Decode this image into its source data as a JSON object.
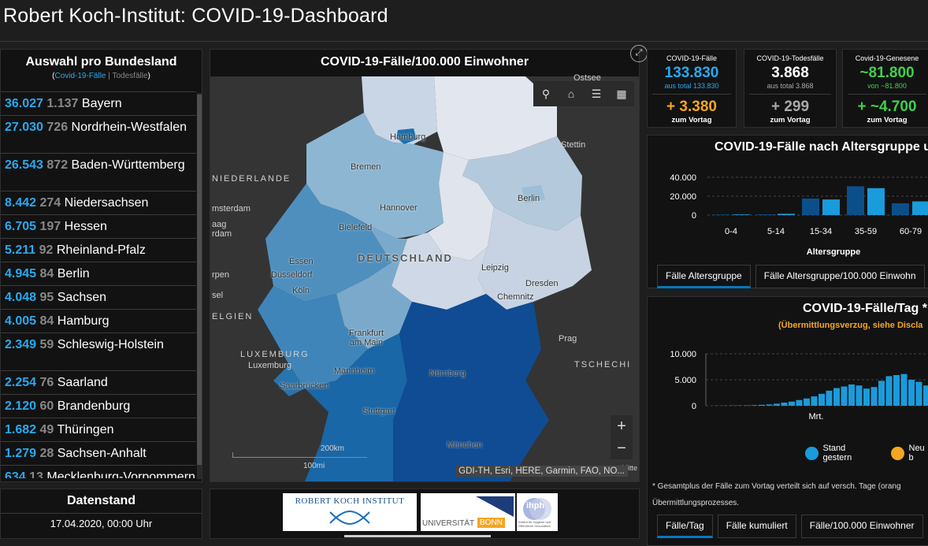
{
  "header": {
    "title": "Robert Koch-Institut: COVID-19-Dashboard"
  },
  "states_panel": {
    "title": "Auswahl pro Bundesland",
    "toggle_cases": "Covid-19-Fälle",
    "toggle_sep": "|",
    "toggle_deaths": "Todesfälle",
    "rows": [
      {
        "cases": "36.027",
        "deaths": "1.137",
        "name": "Bayern"
      },
      {
        "cases": "27.030",
        "deaths": "726",
        "name": "Nordrhein-Westfalen"
      },
      {
        "cases": "26.543",
        "deaths": "872",
        "name": "Baden-Württemberg"
      },
      {
        "cases": "8.442",
        "deaths": "274",
        "name": "Niedersachsen"
      },
      {
        "cases": "6.705",
        "deaths": "197",
        "name": "Hessen"
      },
      {
        "cases": "5.211",
        "deaths": "92",
        "name": "Rheinland-Pfalz"
      },
      {
        "cases": "4.945",
        "deaths": "84",
        "name": "Berlin"
      },
      {
        "cases": "4.048",
        "deaths": "95",
        "name": "Sachsen"
      },
      {
        "cases": "4.005",
        "deaths": "84",
        "name": "Hamburg"
      },
      {
        "cases": "2.349",
        "deaths": "59",
        "name": "Schleswig-Holstein"
      },
      {
        "cases": "2.254",
        "deaths": "76",
        "name": "Saarland"
      },
      {
        "cases": "2.120",
        "deaths": "60",
        "name": "Brandenburg"
      },
      {
        "cases": "1.682",
        "deaths": "49",
        "name": "Thüringen"
      },
      {
        "cases": "1.279",
        "deaths": "28",
        "name": "Sachsen-Anhalt"
      },
      {
        "cases": "634",
        "deaths": "13",
        "name": "Mecklenburg-Vorpommern"
      }
    ]
  },
  "map": {
    "title": "COVID-19-Fälle/100.000 Einwohner",
    "country_label": "DEUTSCHLAND",
    "cities": [
      "Hamburg",
      "Bremen",
      "Hannover",
      "Berlin",
      "Bielefeld",
      "Essen",
      "Düsseldorf",
      "Köln",
      "Leipzig",
      "Dresden",
      "Chemnitz",
      "Frankfurt am Main",
      "Nürnberg",
      "Mannheim",
      "Saarbrücken",
      "Stuttgart",
      "München",
      "Stettin",
      "Prag",
      "Luxemburg",
      "msterdam",
      "aag",
      "rdam",
      "rpen",
      "sel",
      "Ostsee"
    ],
    "regions_dark": [
      "NIEDERLANDE",
      "ELGIEN",
      "LUXEMBURG",
      "TSCHECHI"
    ],
    "scale_label": "200km",
    "scale_label2": "100mi",
    "attribution": "GDI-TH, Esri, HERE, Garmin, FAO, NO...",
    "attribution2": "Mitte",
    "zoom_in": "+",
    "zoom_out": "−",
    "toolbar_icons": [
      "search-icon",
      "home-icon",
      "list-icon",
      "qr-grid-icon"
    ]
  },
  "cards": [
    {
      "label": "COVID-19-Fälle",
      "value": "133.830",
      "sub": "aus total 133.830",
      "delta": "+ 3.380",
      "vortag": "zum Vortag",
      "value_color": "#29a9f0",
      "sub_color": "#29a9f0",
      "delta_color": "#f5a623"
    },
    {
      "label": "COVID-19-Todesfälle",
      "value": "3.868",
      "sub": "aus total 3.868",
      "delta": "+ 299",
      "vortag": "zum Vortag",
      "value_color": "#ffffff",
      "sub_color": "#aaaaaa",
      "delta_color": "#aaaaaa"
    },
    {
      "label": "Covid-19-Genesene",
      "value": "~81.800",
      "sub": "von ~81.800",
      "delta": "+ ~4.700",
      "vortag": "zum Vortag",
      "value_color": "#3fd14c",
      "sub_color": "#3fd14c",
      "delta_color": "#3fd14c"
    }
  ],
  "age_panel": {
    "title": "COVID-19-Fälle nach Altersgruppe u",
    "xlabel": "Altersgruppe",
    "tabs": [
      "Fälle Altersgruppe",
      "Fälle Altersgruppe/100.000 Einwohn"
    ]
  },
  "daily_panel": {
    "title": "COVID-19-Fälle/Tag *",
    "subtitle": "(Übermittlungsverzug, siehe Discla",
    "legend": [
      "Stand gestern",
      "Neu b"
    ],
    "footnote1": "* Gesamtplus der Fälle zum Vortag verteilt sich auf versch. Tage (orang",
    "footnote2": "Übermittlungsprozesses.",
    "tabs": [
      "Fälle/Tag",
      "Fälle kumuliert",
      "Fälle/100.000 Einwohner"
    ]
  },
  "date_panel": {
    "title": "Datenstand",
    "value": "17.04.2020, 00:00 Uhr"
  },
  "logos": {
    "rki": "ROBERT KOCH INSTITUT",
    "bonn_a": "UNIVERSITÄT",
    "bonn_b": "BONN",
    "ihph": "ihph",
    "ihph_sub": "Institut für Hygiene und Öffentliche Gesundheit"
  },
  "chart_data": [
    {
      "type": "bar",
      "categories": [
        "0-4",
        "5-14",
        "15-34",
        "35-59",
        "60-79"
      ],
      "series": [
        {
          "values": [
            600,
            800,
            17500,
            30500,
            12500
          ]
        },
        {
          "values": [
            700,
            1400,
            16500,
            28500,
            14500
          ]
        }
      ],
      "xlabel": "Altersgruppe",
      "yticks": [
        "0",
        "20.000",
        "40.000"
      ],
      "ylim": [
        0,
        40000
      ],
      "colors": [
        "#0b4f8a",
        "#1a9bdc"
      ]
    },
    {
      "type": "bar",
      "x_label_visible": "Mrt.",
      "yticks": [
        "0",
        "5.000",
        "10.000"
      ],
      "ylim": [
        0,
        10000
      ],
      "series": [
        {
          "name": "Stand gestern",
          "values": [
            30,
            40,
            50,
            60,
            80,
            120,
            180,
            250,
            400,
            600,
            800,
            1100,
            1400,
            1800,
            2300,
            2900,
            3400,
            3700,
            4100,
            3900,
            3300,
            3600,
            4800,
            5700,
            5900,
            6100,
            5000,
            4600,
            3900,
            4000,
            3600,
            2600,
            2200,
            1700
          ]
        }
      ],
      "colors": [
        "#1a9bdc",
        "#f5a623"
      ]
    }
  ]
}
